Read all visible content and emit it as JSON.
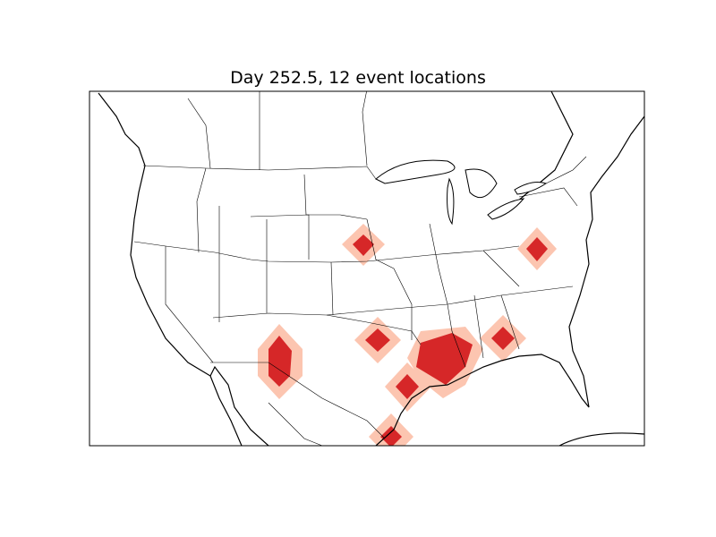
{
  "title": "Day 252.5, 12 event locations",
  "colors": {
    "event_core": "#d62728",
    "event_halo": "#fcc5b0",
    "coastline": "#000000",
    "background": "#ffffff"
  },
  "map": {
    "region": "North America (contiguous United States)",
    "projection": "basemap"
  }
}
